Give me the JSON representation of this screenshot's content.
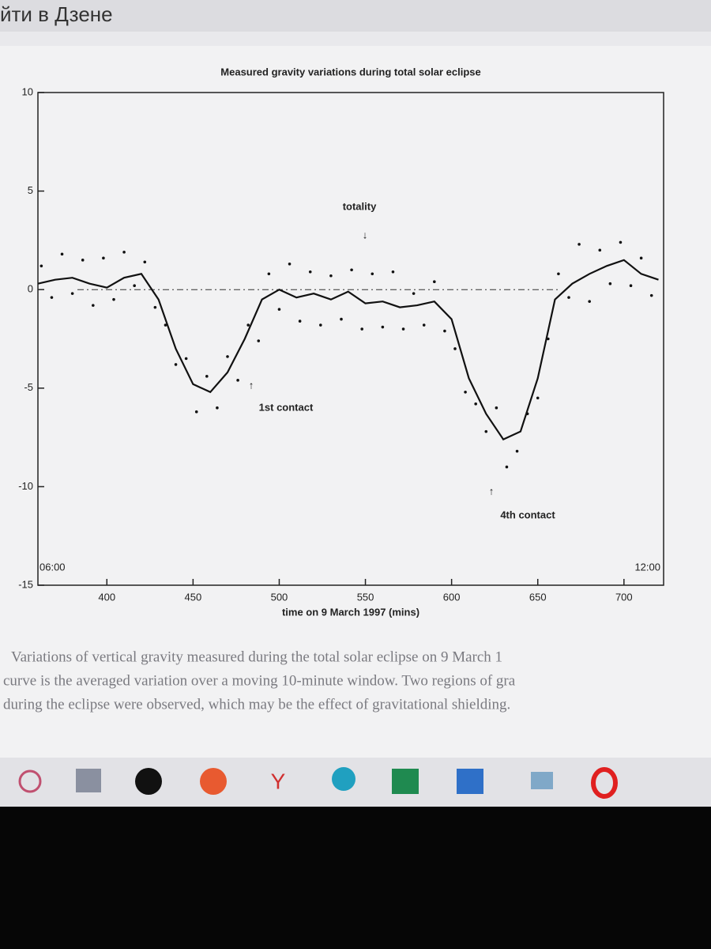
{
  "header": "йти в Дзене",
  "caption": [
    "Variations of vertical gravity measured during the total solar eclipse on 9 March 1",
    "curve is the averaged variation over a moving 10-minute window. Two regions of gra",
    "during the eclipse were observed, which may be the effect of gravitational shielding."
  ],
  "chart_data": {
    "type": "line",
    "title": "Measured gravity variations during total solar eclipse",
    "xlabel": "time on 9 March 1997 (mins)",
    "annotations": [
      "totality",
      "1st contact",
      "4th contact",
      "06:00",
      "12:00"
    ],
    "xlim": [
      360,
      723
    ],
    "xticks": [
      400,
      450,
      500,
      550,
      600,
      650,
      700
    ],
    "ylim": [
      -15,
      10
    ],
    "yticks": [
      -15,
      -10,
      -5,
      0,
      5,
      10
    ],
    "reference_line": 0,
    "color": "#111111",
    "x": [
      360,
      370,
      380,
      390,
      400,
      410,
      420,
      430,
      440,
      450,
      460,
      470,
      480,
      490,
      500,
      510,
      520,
      530,
      540,
      550,
      560,
      570,
      580,
      590,
      600,
      610,
      620,
      630,
      640,
      650,
      660,
      670,
      680,
      690,
      700,
      710,
      720
    ],
    "values": [
      0.3,
      0.5,
      0.6,
      0.3,
      0.1,
      0.6,
      0.8,
      -0.5,
      -3,
      -4.8,
      -5.2,
      -4.2,
      -2.5,
      -0.5,
      0,
      -0.4,
      -0.2,
      -0.5,
      -0.1,
      -0.7,
      -0.6,
      -0.9,
      -0.8,
      -0.6,
      -1.5,
      -4.5,
      -6.3,
      -7.6,
      -7.2,
      -4.5,
      -0.5,
      0.3,
      0.8,
      1.2,
      1.5,
      0.8,
      0.5
    ],
    "scatter": {
      "x": [
        362,
        368,
        374,
        380,
        386,
        392,
        398,
        404,
        410,
        416,
        422,
        428,
        434,
        440,
        446,
        452,
        458,
        464,
        470,
        476,
        482,
        488,
        494,
        500,
        506,
        512,
        518,
        524,
        530,
        536,
        542,
        548,
        554,
        560,
        566,
        572,
        578,
        584,
        590,
        596,
        602,
        608,
        614,
        620,
        626,
        632,
        638,
        644,
        650,
        656,
        662,
        668,
        674,
        680,
        686,
        692,
        698,
        704,
        710,
        716
      ],
      "values": [
        1.2,
        -0.4,
        1.8,
        -0.2,
        1.5,
        -0.8,
        1.6,
        -0.5,
        1.9,
        0.2,
        1.4,
        -0.9,
        -1.8,
        -3.8,
        -3.5,
        -6.2,
        -4.4,
        -6.0,
        -3.4,
        -4.6,
        -1.8,
        -2.6,
        0.8,
        -1.0,
        1.3,
        -1.6,
        0.9,
        -1.8,
        0.7,
        -1.5,
        1.0,
        -2.0,
        0.8,
        -1.9,
        0.9,
        -2.0,
        -0.2,
        -1.8,
        0.4,
        -2.1,
        -3.0,
        -5.2,
        -5.8,
        -7.2,
        -6.0,
        -9.0,
        -8.2,
        -6.3,
        -5.5,
        -2.5,
        0.8,
        -0.4,
        2.3,
        -0.6,
        2.0,
        0.3,
        2.4,
        0.2,
        1.6,
        -0.3
      ]
    }
  }
}
